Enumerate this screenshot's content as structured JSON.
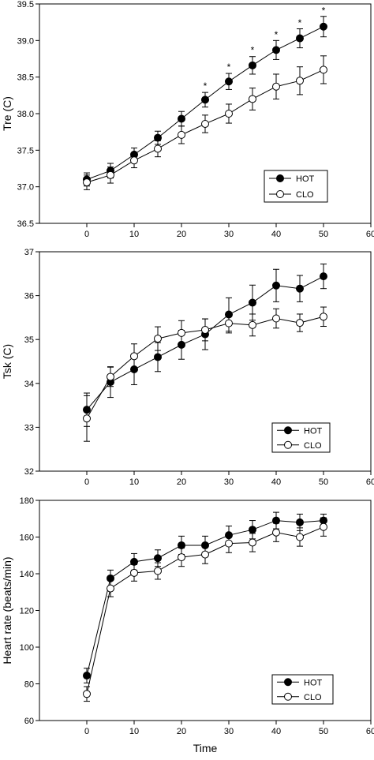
{
  "chart_data": [
    {
      "type": "line",
      "ylabel": "Tre (C)",
      "xlabel": "",
      "xlim": [
        -10,
        60
      ],
      "ylim": [
        36.5,
        39.5
      ],
      "xticks": [
        0,
        10,
        20,
        30,
        40,
        50,
        60
      ],
      "yticks": [
        36.5,
        37.0,
        37.5,
        38.0,
        38.5,
        39.0,
        39.5
      ],
      "ytick_labels": [
        "36.5",
        "37.0",
        "37.5",
        "38.0",
        "38.5",
        "39.0",
        "39.5"
      ],
      "legend_position": "lower-right",
      "x": [
        0,
        5,
        10,
        15,
        20,
        25,
        30,
        35,
        40,
        45,
        50
      ],
      "series": [
        {
          "name": "HOT",
          "marker": "filled",
          "values": [
            37.1,
            37.22,
            37.44,
            37.67,
            37.93,
            38.19,
            38.44,
            38.66,
            38.87,
            39.03,
            39.19
          ],
          "errors": [
            0.09,
            0.1,
            0.09,
            0.09,
            0.1,
            0.1,
            0.11,
            0.12,
            0.13,
            0.13,
            0.14
          ]
        },
        {
          "name": "CLO",
          "marker": "open",
          "values": [
            37.06,
            37.16,
            37.36,
            37.52,
            37.71,
            37.86,
            38.0,
            38.2,
            38.37,
            38.45,
            38.6
          ],
          "errors": [
            0.1,
            0.11,
            0.1,
            0.11,
            0.12,
            0.12,
            0.13,
            0.15,
            0.17,
            0.19,
            0.19
          ]
        }
      ],
      "annotations": [
        {
          "x": 25,
          "y": 38.39,
          "text": "*"
        },
        {
          "x": 30,
          "y": 38.65,
          "text": "*"
        },
        {
          "x": 35,
          "y": 38.88,
          "text": "*"
        },
        {
          "x": 40,
          "y": 39.09,
          "text": "*"
        },
        {
          "x": 45,
          "y": 39.25,
          "text": "*"
        },
        {
          "x": 50,
          "y": 39.42,
          "text": "*"
        }
      ]
    },
    {
      "type": "line",
      "ylabel": "Tsk (C)",
      "xlabel": "",
      "xlim": [
        -10,
        60
      ],
      "ylim": [
        32,
        37
      ],
      "xticks": [
        0,
        10,
        20,
        30,
        40,
        50,
        60
      ],
      "yticks": [
        32,
        33,
        34,
        35,
        36,
        37
      ],
      "ytick_labels": [
        "32",
        "33",
        "34",
        "35",
        "36",
        "37"
      ],
      "legend_position": "lower-right",
      "x": [
        0,
        5,
        10,
        15,
        20,
        25,
        30,
        35,
        40,
        45,
        50
      ],
      "series": [
        {
          "name": "HOT",
          "marker": "filled",
          "values": [
            33.4,
            34.03,
            34.32,
            34.6,
            34.88,
            35.12,
            35.57,
            35.84,
            36.23,
            36.16,
            36.44
          ],
          "errors": [
            0.38,
            0.35,
            0.35,
            0.33,
            0.33,
            0.35,
            0.38,
            0.4,
            0.37,
            0.3,
            0.28
          ]
        },
        {
          "name": "CLO",
          "marker": "open",
          "values": [
            33.2,
            34.15,
            34.62,
            35.02,
            35.15,
            35.22,
            35.37,
            35.33,
            35.48,
            35.38,
            35.52
          ],
          "errors": [
            0.52,
            0.22,
            0.28,
            0.27,
            0.28,
            0.25,
            0.22,
            0.25,
            0.22,
            0.2,
            0.22
          ]
        }
      ],
      "annotations": []
    },
    {
      "type": "line",
      "ylabel": "Heart rate (beats/min)",
      "xlabel": "Time",
      "xlim": [
        -10,
        60
      ],
      "ylim": [
        60,
        180
      ],
      "xticks": [
        0,
        10,
        20,
        30,
        40,
        50,
        60
      ],
      "yticks": [
        60,
        80,
        100,
        120,
        140,
        160,
        180
      ],
      "ytick_labels": [
        "60",
        "80",
        "100",
        "120",
        "140",
        "160",
        "180"
      ],
      "legend_position": "lower-right",
      "x": [
        0,
        5,
        10,
        15,
        20,
        25,
        30,
        35,
        40,
        45,
        50
      ],
      "series": [
        {
          "name": "HOT",
          "marker": "filled",
          "values": [
            84.5,
            137.5,
            146.5,
            148.5,
            155.5,
            155.5,
            161,
            164,
            169,
            168,
            169
          ],
          "errors": [
            4,
            4.5,
            4.5,
            4.5,
            5,
            5,
            5,
            5,
            4.5,
            4.5,
            3.5
          ]
        },
        {
          "name": "CLO",
          "marker": "open",
          "values": [
            74.5,
            132,
            140.5,
            141.5,
            149,
            150.5,
            156.5,
            157,
            162.5,
            160,
            165.5
          ],
          "errors": [
            4,
            4.5,
            4.5,
            4.5,
            5,
            5,
            5,
            5,
            5,
            5,
            5
          ]
        }
      ],
      "annotations": []
    }
  ]
}
